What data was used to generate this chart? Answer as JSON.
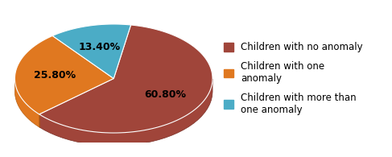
{
  "slices": [
    60.8,
    25.8,
    13.4
  ],
  "labels": [
    "60.80%",
    "25.80%",
    "13.40%"
  ],
  "colors": [
    "#A0453A",
    "#E07820",
    "#4BACC6"
  ],
  "edge_colors": [
    "#7A2E25",
    "#B85E10",
    "#2E8BAA"
  ],
  "legend_labels": [
    "Children with no anomaly",
    "Children with one\nanomaly",
    "Children with more than\none anomaly"
  ],
  "startangle": 90,
  "text_fontsize": 9,
  "legend_fontsize": 8.5,
  "background_color": "#ffffff",
  "label_colors": [
    "#000000",
    "#000000",
    "#000000"
  ]
}
